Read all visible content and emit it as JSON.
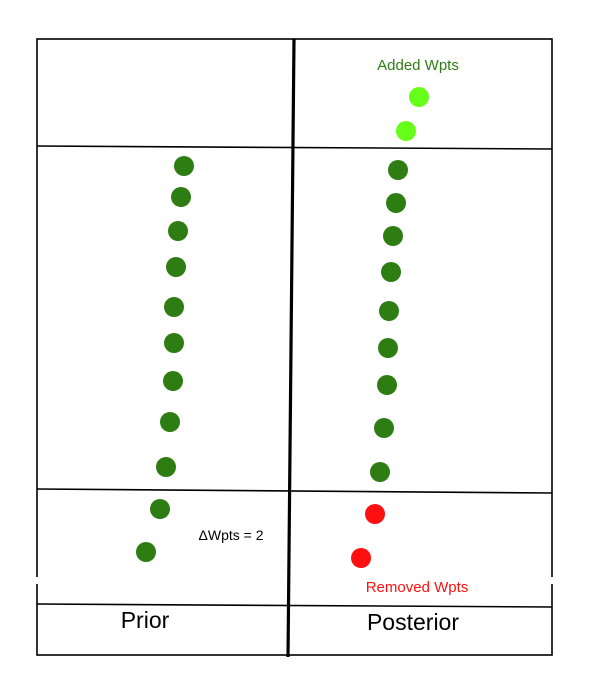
{
  "labels": {
    "added": "Added Wpts",
    "removed": "Removed Wpts",
    "delta": "ΔWpts = 2",
    "prior": "Prior",
    "posterior": "Posterior"
  },
  "colors": {
    "waypoint": "#2e7d13",
    "added": "#66ff1a",
    "removed": "#ff1010",
    "line": "#000000"
  },
  "prior_waypoints": 11,
  "posterior": {
    "kept_waypoints": 9,
    "added_waypoints": 2,
    "removed_waypoints": 2
  }
}
